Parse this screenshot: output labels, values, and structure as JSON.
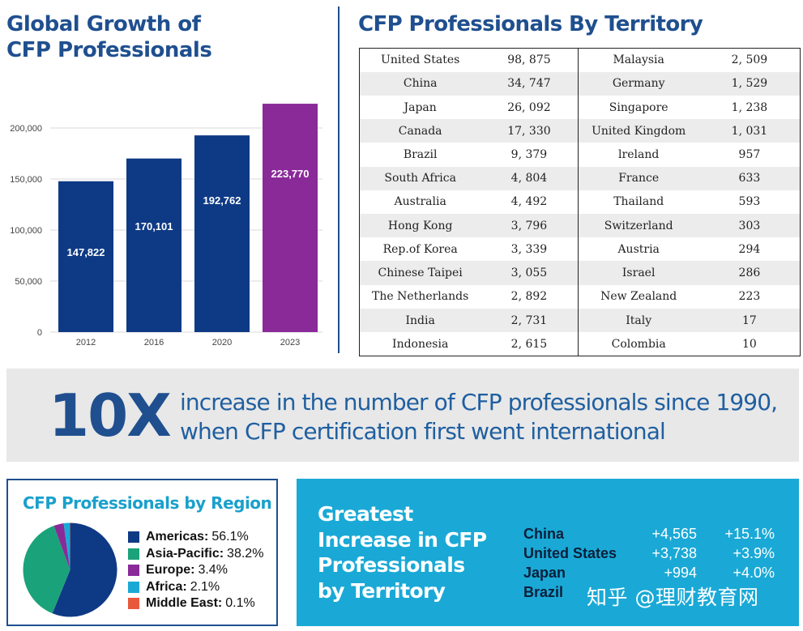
{
  "growth": {
    "title_line1": "Global Growth of",
    "title_line2": "CFP Professionals"
  },
  "chart_data": [
    {
      "type": "bar",
      "title": "Global Growth of CFP Professionals",
      "categories": [
        "2012",
        "2016",
        "2020",
        "2023"
      ],
      "values": [
        147822,
        170101,
        192762,
        223770
      ],
      "value_labels": [
        "147,822",
        "170,101",
        "192,762",
        "223,770"
      ],
      "bar_colors": [
        "#0e3a85",
        "#0e3a85",
        "#0e3a85",
        "#8a2a99"
      ],
      "ylim": [
        0,
        200000
      ],
      "yticks": [
        0,
        50000,
        100000,
        150000,
        200000
      ],
      "ytick_labels": [
        "0",
        "50,000",
        "100,000",
        "150,000",
        "200,000"
      ],
      "grid": true,
      "xlabel": "",
      "ylabel": ""
    },
    {
      "type": "pie",
      "title": "CFP Professionals by Region",
      "labels": [
        "Americas",
        "Asia-Pacific",
        "Europe",
        "Africa",
        "Middle East"
      ],
      "values": [
        56.1,
        38.2,
        3.4,
        2.1,
        0.1
      ],
      "value_labels": [
        "56.1%",
        "38.2%",
        "3.4%",
        "2.1%",
        "0.1%"
      ],
      "colors": [
        "#0e3a85",
        "#1aa37a",
        "#8a2a99",
        "#1aa9d6",
        "#e8593c"
      ],
      "legend": "right"
    },
    {
      "type": "table",
      "title": "CFP Professionals By Territory",
      "rows": [
        [
          "United States",
          "98, 875",
          "Malaysia",
          "2, 509"
        ],
        [
          "China",
          "34, 747",
          "Germany",
          "1, 529"
        ],
        [
          "Japan",
          "26, 092",
          "Singapore",
          "1, 238"
        ],
        [
          "Canada",
          "17, 330",
          "United Kingdom",
          "1, 031"
        ],
        [
          "Brazil",
          "9, 379",
          "lreland",
          "957"
        ],
        [
          "South Africa",
          "4, 804",
          "France",
          "633"
        ],
        [
          "Australia",
          "4, 492",
          "Thailand",
          "593"
        ],
        [
          "Hong Kong",
          "3, 796",
          "Switzerland",
          "303"
        ],
        [
          "Rep.of Korea",
          "3, 339",
          "Austria",
          "294"
        ],
        [
          "Chinese Taipei",
          "3, 055",
          "Israel",
          "286"
        ],
        [
          "The Netherlands",
          "2, 892",
          "New Zealand",
          "223"
        ],
        [
          "India",
          "2, 731",
          "Italy",
          "17"
        ],
        [
          "Indonesia",
          "2, 615",
          "Colombia",
          "10"
        ]
      ]
    },
    {
      "type": "table",
      "title": "Greatest Increase in CFP Professionals by Territory",
      "rows": [
        {
          "territory": "China",
          "delta": "+4,565",
          "pct": "+15.1%"
        },
        {
          "territory": "United States",
          "delta": "+3,738",
          "pct": "+3.9%"
        },
        {
          "territory": "Japan",
          "delta": "+994",
          "pct": "+4.0%"
        },
        {
          "territory": "Brazil",
          "delta": "",
          "pct": ""
        }
      ]
    }
  ],
  "territory": {
    "title": "CFP Professionals By Territory"
  },
  "banner": {
    "big": "10X",
    "line1": "increase in the number of CFP professionals since 1990,",
    "line2": "when CFP certification first went international"
  },
  "region": {
    "title": "CFP Professionals by Region"
  },
  "increase": {
    "title_line1": "Greatest",
    "title_line2": "Increase in CFP",
    "title_line3": "Professionals",
    "title_line4": "by Territory"
  },
  "watermark": "知乎 @理财教育网",
  "colors": {
    "navy": "#1f4f8f",
    "bar_blue": "#0e3a85",
    "bar_purple": "#8a2a99",
    "cyan": "#1aa9d6",
    "banner_bg": "#e8e8e8"
  }
}
